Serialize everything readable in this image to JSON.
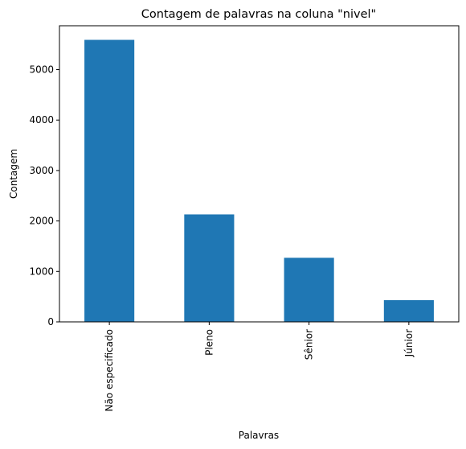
{
  "chart_data": {
    "type": "bar",
    "title": "Contagem de palavras na coluna \"nivel\"",
    "xlabel": "Palavras",
    "ylabel": "Contagem",
    "categories": [
      "Não especificado",
      "Pleno",
      "Sênior",
      "Júnior"
    ],
    "values": [
      5590,
      2130,
      1270,
      430
    ],
    "ylim": [
      0,
      5869.5
    ],
    "yticks": [
      0,
      1000,
      2000,
      3000,
      4000,
      5000
    ],
    "ytick_labels": [
      "0",
      "1000",
      "2000",
      "3000",
      "4000",
      "5000"
    ],
    "bar_color": "#1f77b4",
    "grid": false,
    "legend": "none"
  }
}
